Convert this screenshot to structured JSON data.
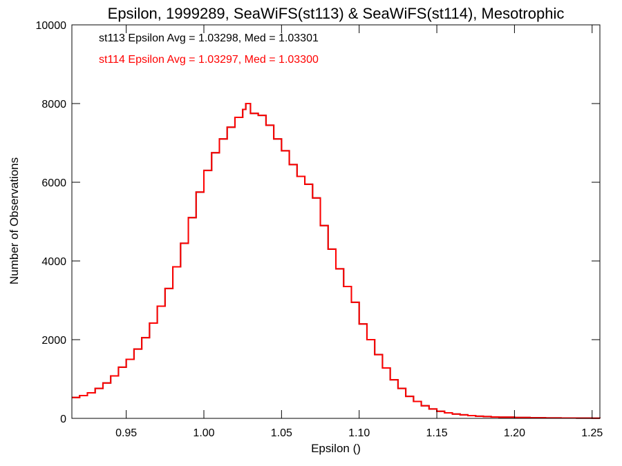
{
  "chart_data": {
    "type": "line",
    "style": "step",
    "title": "Epsilon, 1999289, SeaWiFS(st113) & SeaWiFS(st114), Mesotrophic",
    "xlabel": "Epsilon ()",
    "ylabel": "Number of Observations",
    "xlim": [
      0.915,
      1.255
    ],
    "ylim": [
      0,
      10000
    ],
    "xticks": [
      0.95,
      1.0,
      1.05,
      1.1,
      1.15,
      1.2,
      1.25
    ],
    "xtick_labels": [
      "0.95",
      "1.00",
      "1.05",
      "1.10",
      "1.15",
      "1.20",
      "1.25"
    ],
    "yticks": [
      0,
      2000,
      4000,
      6000,
      8000,
      10000
    ],
    "ytick_labels": [
      "0",
      "2000",
      "4000",
      "6000",
      "8000",
      "10000"
    ],
    "grid": false,
    "annotations": [
      {
        "text": "st113 Epsilon Avg = 1.03298, Med = 1.03301",
        "color": "#000000"
      },
      {
        "text": "st114 Epsilon Avg = 1.03297, Med = 1.03300",
        "color": "#ff0000"
      }
    ],
    "x": [
      0.915,
      0.92,
      0.925,
      0.93,
      0.935,
      0.94,
      0.945,
      0.95,
      0.955,
      0.96,
      0.965,
      0.97,
      0.975,
      0.98,
      0.985,
      0.99,
      0.995,
      1.0,
      1.005,
      1.01,
      1.015,
      1.02,
      1.025,
      1.027,
      1.03,
      1.035,
      1.04,
      1.045,
      1.05,
      1.055,
      1.06,
      1.065,
      1.07,
      1.075,
      1.08,
      1.085,
      1.09,
      1.095,
      1.1,
      1.105,
      1.11,
      1.115,
      1.12,
      1.125,
      1.13,
      1.135,
      1.14,
      1.145,
      1.15,
      1.155,
      1.16,
      1.165,
      1.17,
      1.175,
      1.18,
      1.185,
      1.19,
      1.2,
      1.21,
      1.22,
      1.23,
      1.24,
      1.25,
      1.255
    ],
    "series": [
      {
        "name": "st113",
        "color": "#000000",
        "values": [
          530,
          580,
          650,
          760,
          900,
          1080,
          1300,
          1500,
          1760,
          2050,
          2420,
          2850,
          3300,
          3850,
          4450,
          5100,
          5750,
          6300,
          6750,
          7100,
          7400,
          7650,
          7850,
          8000,
          7750,
          7700,
          7450,
          7100,
          6800,
          6450,
          6150,
          5950,
          5600,
          4900,
          4300,
          3800,
          3350,
          2950,
          2400,
          2000,
          1620,
          1280,
          980,
          760,
          560,
          430,
          320,
          240,
          180,
          140,
          110,
          90,
          70,
          55,
          45,
          35,
          30,
          22,
          16,
          12,
          9,
          7,
          5,
          4
        ]
      },
      {
        "name": "st114",
        "color": "#ff0000",
        "values": [
          530,
          580,
          650,
          760,
          900,
          1080,
          1300,
          1500,
          1760,
          2050,
          2420,
          2850,
          3300,
          3850,
          4450,
          5100,
          5750,
          6300,
          6750,
          7100,
          7400,
          7650,
          7850,
          8000,
          7750,
          7700,
          7450,
          7100,
          6800,
          6450,
          6150,
          5950,
          5600,
          4900,
          4300,
          3800,
          3350,
          2950,
          2400,
          2000,
          1620,
          1280,
          980,
          760,
          560,
          430,
          320,
          240,
          180,
          140,
          110,
          90,
          70,
          55,
          45,
          35,
          30,
          22,
          16,
          12,
          9,
          7,
          5,
          4
        ]
      }
    ]
  }
}
